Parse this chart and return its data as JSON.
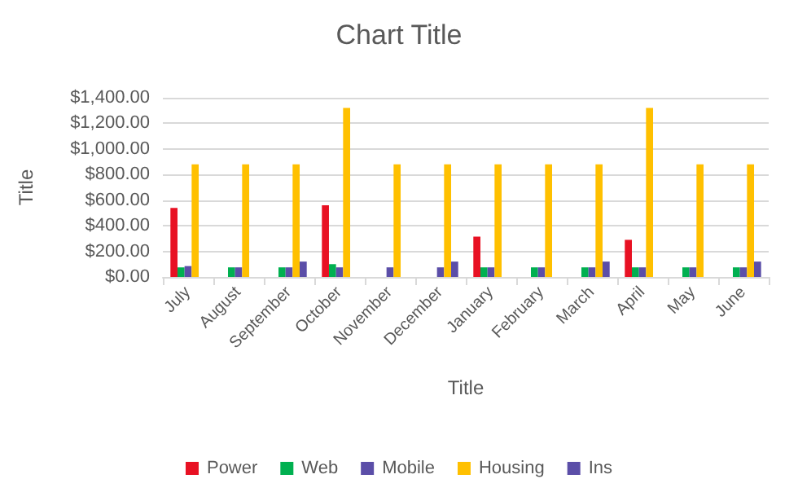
{
  "chart_data": {
    "type": "bar",
    "title": "Chart Title",
    "xlabel": "Title",
    "ylabel": "Title",
    "categories": [
      "July",
      "August",
      "September",
      "October",
      "November",
      "December",
      "January",
      "February",
      "March",
      "April",
      "May",
      "June"
    ],
    "series": [
      {
        "name": "Power",
        "color": "#e81123",
        "values": [
          540,
          null,
          null,
          560,
          null,
          null,
          315,
          null,
          null,
          290,
          null,
          null
        ]
      },
      {
        "name": "Web",
        "color": "#00b050",
        "values": [
          75,
          75,
          75,
          100,
          null,
          null,
          75,
          75,
          75,
          75,
          75,
          75
        ]
      },
      {
        "name": "Mobile",
        "color": "#5b4ea8",
        "values": [
          85,
          75,
          75,
          75,
          75,
          75,
          75,
          75,
          75,
          75,
          75,
          75
        ]
      },
      {
        "name": "Housing",
        "color": "#ffc000",
        "values": [
          880,
          880,
          880,
          1320,
          880,
          880,
          880,
          880,
          880,
          1320,
          880,
          880
        ]
      },
      {
        "name": "Ins",
        "color": "#5b4ea8",
        "values": [
          null,
          null,
          120,
          null,
          null,
          120,
          null,
          null,
          120,
          null,
          null,
          120
        ]
      }
    ],
    "ylim": [
      0,
      1400
    ],
    "yticks": [
      {
        "value": 0,
        "label": "$0.00"
      },
      {
        "value": 200,
        "label": "$200.00"
      },
      {
        "value": 400,
        "label": "$400.00"
      },
      {
        "value": 600,
        "label": "$600.00"
      },
      {
        "value": 800,
        "label": "$800.00"
      },
      {
        "value": 1000,
        "label": "$1,000.00"
      },
      {
        "value": 1200,
        "label": "$1,200.00"
      },
      {
        "value": 1400,
        "label": "$1,400.00"
      }
    ],
    "grid": "y",
    "legend": "bottom"
  }
}
